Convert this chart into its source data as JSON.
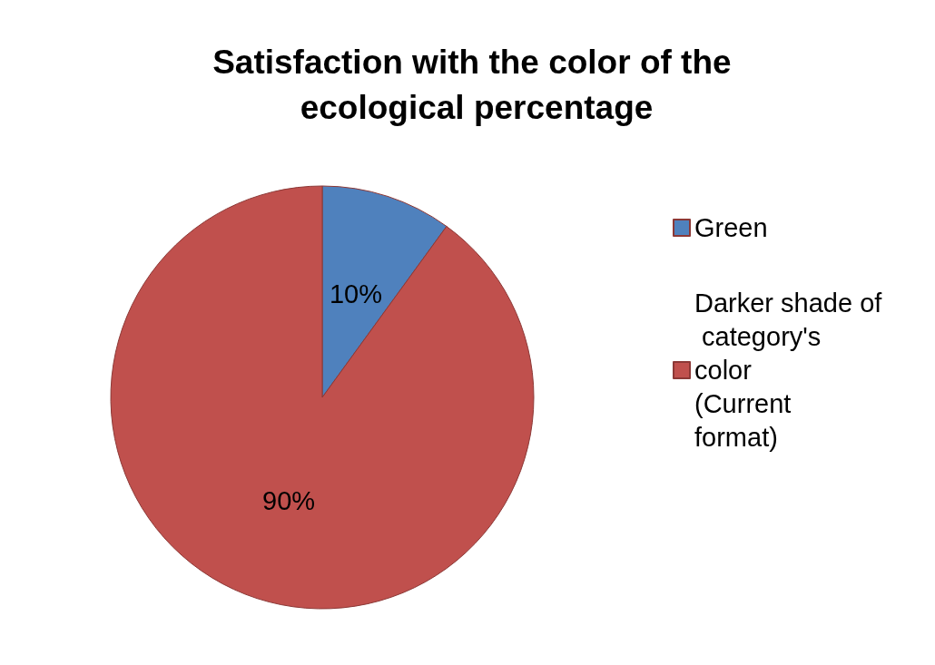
{
  "chart_data": {
    "type": "pie",
    "title": "Satisfaction with the color of the ecological percentage",
    "categories": [
      "Green",
      "Darker shade of category's color (Current format)"
    ],
    "values": [
      10,
      90
    ],
    "colors": [
      "#4f81bd",
      "#c0504d"
    ],
    "value_labels": [
      "10%",
      "90%"
    ],
    "legend": "right"
  }
}
